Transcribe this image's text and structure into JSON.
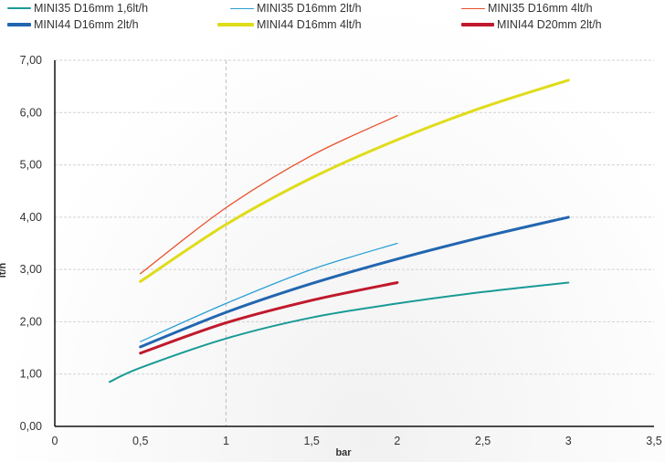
{
  "chart_data": {
    "type": "line",
    "xlabel": "bar",
    "ylabel": "lt/h",
    "xlim": [
      0,
      3.5
    ],
    "ylim": [
      0,
      7
    ],
    "x_ticks": [
      "0",
      "0,5",
      "1",
      "1,5",
      "2",
      "2,5",
      "3",
      "3,5"
    ],
    "y_ticks": [
      "0,00",
      "1,00",
      "2,00",
      "3,00",
      "4,00",
      "5,00",
      "6,00",
      "7,00"
    ],
    "grid": "dashed",
    "legend_position": "top",
    "series": [
      {
        "name": "MINI35 D16mm 1,6lt/h",
        "color": "#1a9a96",
        "width": 2,
        "points": [
          [
            0.32,
            0.85
          ],
          [
            0.5,
            1.12
          ],
          [
            1.0,
            1.68
          ],
          [
            1.5,
            2.08
          ],
          [
            2.0,
            2.35
          ],
          [
            2.5,
            2.57
          ],
          [
            3.0,
            2.75
          ]
        ]
      },
      {
        "name": "MINI35 D16mm 2lt/h",
        "color": "#2a9fd6",
        "width": 1.3,
        "points": [
          [
            0.5,
            1.62
          ],
          [
            1.0,
            2.35
          ],
          [
            1.5,
            3.0
          ],
          [
            2.0,
            3.5
          ]
        ]
      },
      {
        "name": "MINI35 D16mm 4lt/h",
        "color": "#e8502a",
        "width": 1.3,
        "points": [
          [
            0.5,
            2.92
          ],
          [
            1.0,
            4.18
          ],
          [
            1.5,
            5.18
          ],
          [
            2.0,
            5.94
          ]
        ]
      },
      {
        "name": "MINI44 D16mm 2lt/h",
        "color": "#2266b0",
        "width": 3,
        "points": [
          [
            0.5,
            1.52
          ],
          [
            1.0,
            2.18
          ],
          [
            1.5,
            2.73
          ],
          [
            2.0,
            3.2
          ],
          [
            2.5,
            3.62
          ],
          [
            3.0,
            4.0
          ]
        ]
      },
      {
        "name": "MINI44 D16mm 4lt/h",
        "color": "#dfdc1a",
        "width": 3,
        "points": [
          [
            0.5,
            2.77
          ],
          [
            1.0,
            3.86
          ],
          [
            1.5,
            4.75
          ],
          [
            2.0,
            5.48
          ],
          [
            2.5,
            6.1
          ],
          [
            3.0,
            6.62
          ]
        ]
      },
      {
        "name": "MINI44 D20mm 2lt/h",
        "color": "#c0192c",
        "width": 3,
        "points": [
          [
            0.5,
            1.4
          ],
          [
            1.0,
            1.98
          ],
          [
            1.5,
            2.41
          ],
          [
            2.0,
            2.75
          ]
        ]
      }
    ]
  }
}
